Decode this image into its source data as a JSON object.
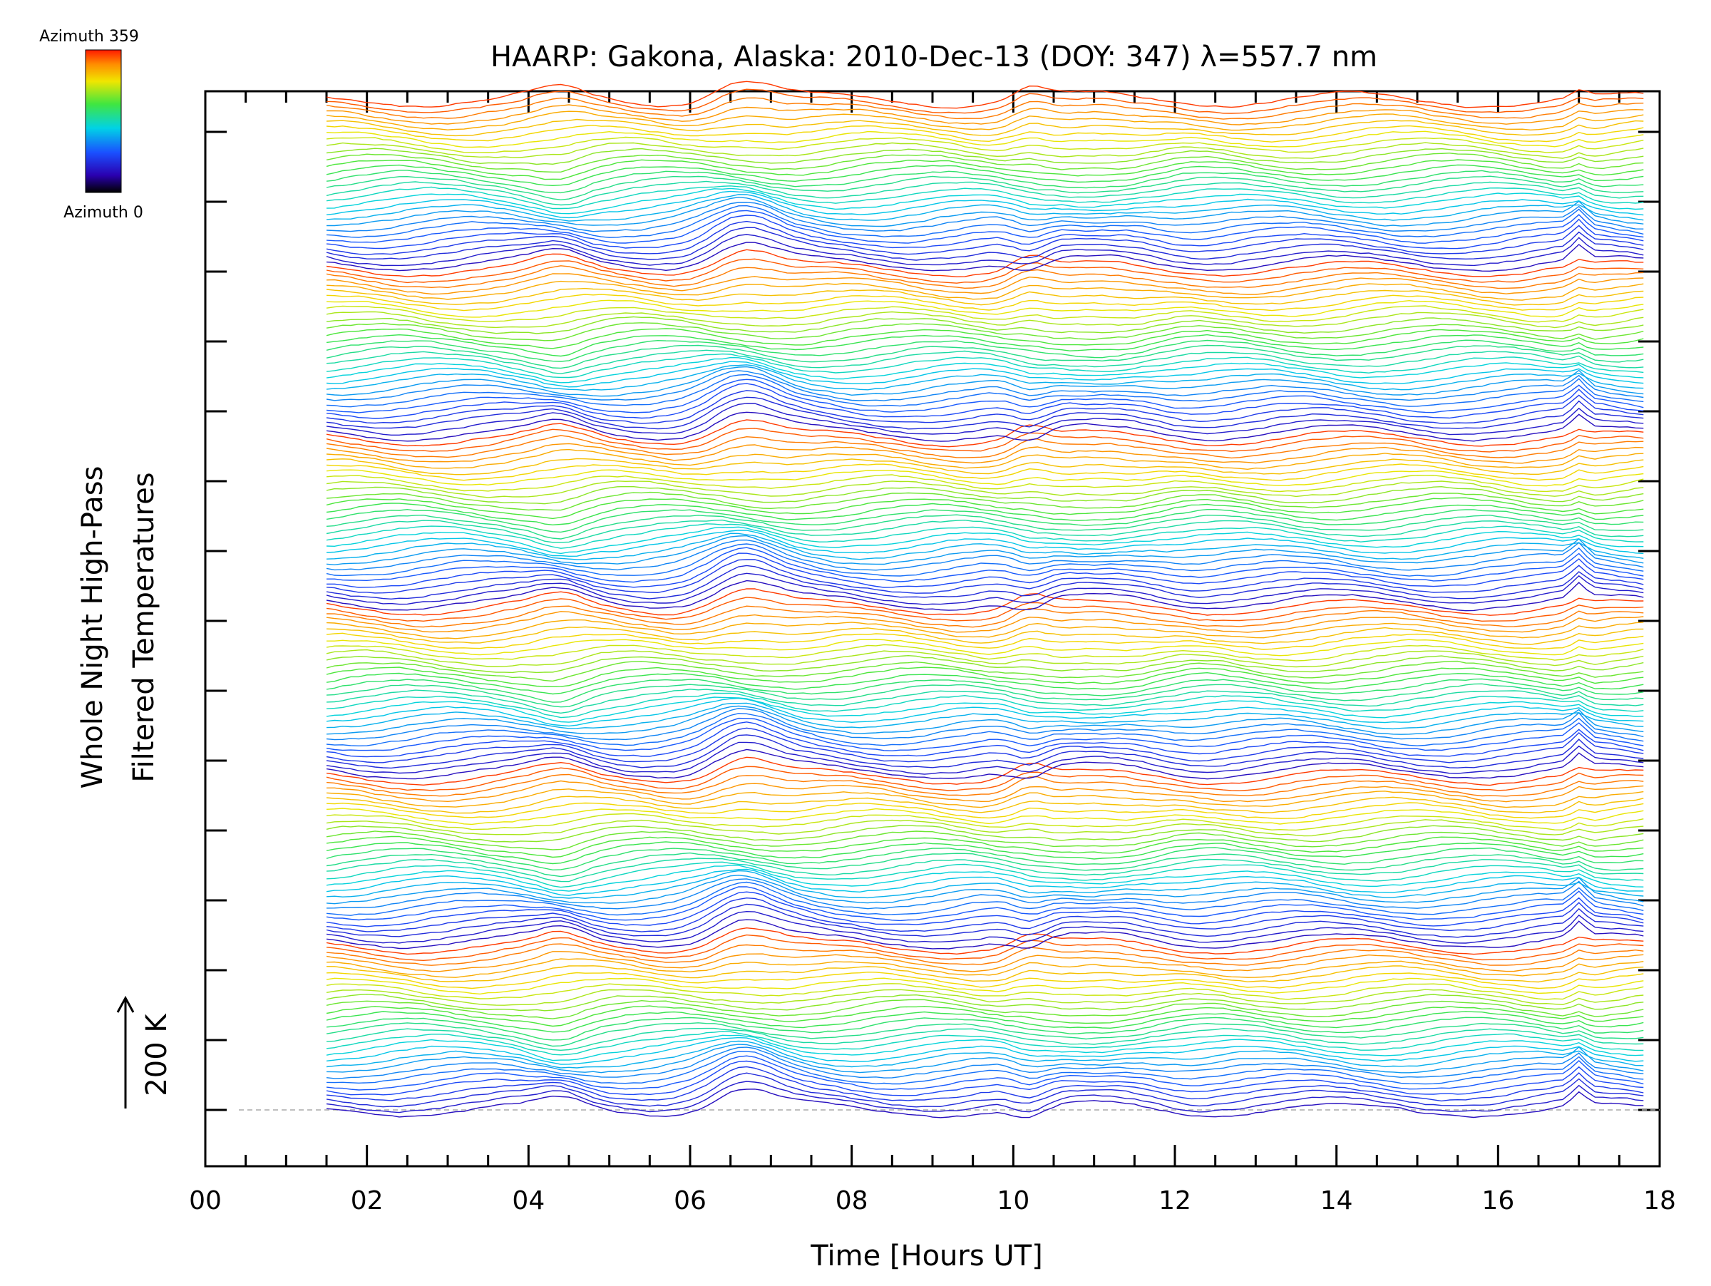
{
  "chart_data": {
    "type": "line",
    "title": "HAARP: Gakona,  Alaska: 2010-Dec-13 (DOY: 347) λ=557.7 nm",
    "xlabel": "Time [Hours UT]",
    "ylabel_lines": [
      "Whole Night High-Pass",
      "Filtered Temperatures"
    ],
    "xlim": [
      0,
      18
    ],
    "x_tick_labels": [
      "00",
      "02",
      "04",
      "06",
      "08",
      "10",
      "12",
      "14",
      "16",
      "18"
    ],
    "x_major_step": 2,
    "x_minor_step": 0.5,
    "data_x_range": [
      1.5,
      17.8
    ],
    "y_minor_tick_count": 15,
    "scale_bar": {
      "label": "200 K",
      "value": 200,
      "unit": "K"
    },
    "colorbar": {
      "top_label": "Azimuth 359",
      "bottom_label": "Azimuth 0",
      "min": 0,
      "max": 359
    },
    "series_count": 180,
    "stack_offset_K": 22,
    "colors": {
      "axis": "#000000",
      "baseline": "#aaaaaa",
      "background": "#ffffff"
    },
    "events": [
      {
        "time": 6.1,
        "description": "sharp rise"
      },
      {
        "time": 7.0,
        "description": "peak"
      },
      {
        "time": 17.0,
        "description": "spike"
      }
    ]
  }
}
